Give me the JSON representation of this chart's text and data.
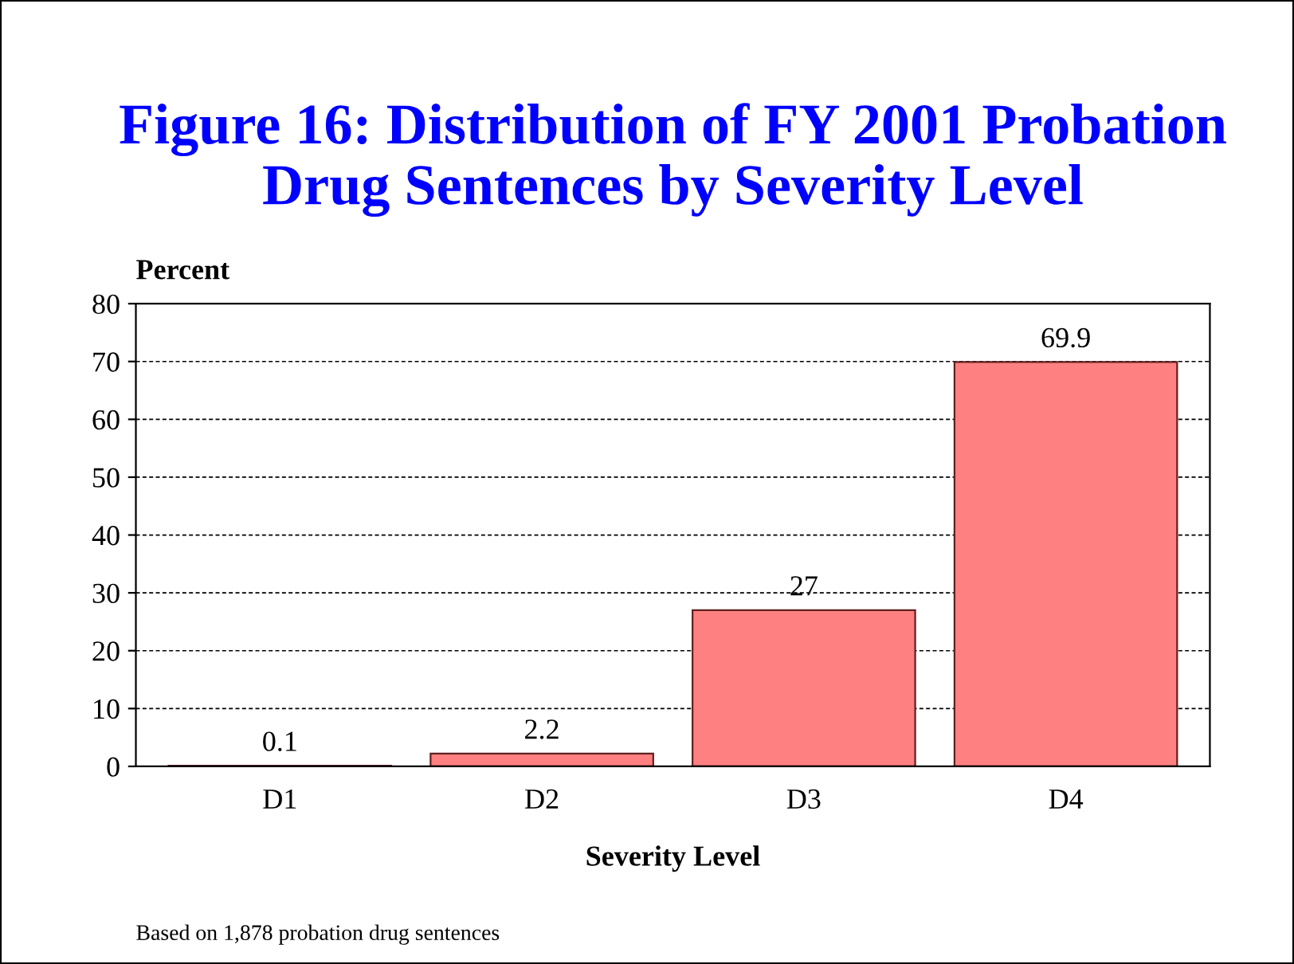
{
  "chart_data": {
    "type": "bar",
    "title": "Figure 16: Distribution of FY 2001 Probation\nDrug Sentences by Severity Level",
    "categories": [
      "D1",
      "D2",
      "D3",
      "D4"
    ],
    "values": [
      0.1,
      2.2,
      27,
      69.9
    ],
    "color": "#ff8080",
    "ylabel": "Percent",
    "xlabel": "Severity Level",
    "ylim": [
      0,
      80
    ],
    "yticks": [
      0,
      10,
      20,
      30,
      40,
      50,
      60,
      70,
      80
    ],
    "grid": "y",
    "data_labels": true,
    "annotations": [
      "Based on 1,878 probation drug sentences"
    ]
  }
}
